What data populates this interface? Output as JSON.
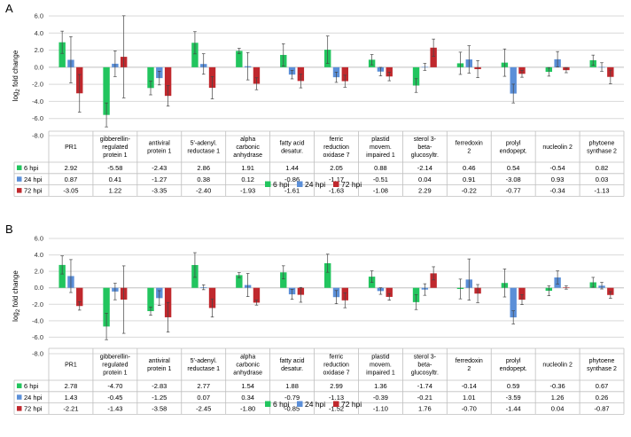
{
  "chart_data": [
    {
      "type": "bar",
      "panel_label": "A",
      "ylabel": "log",
      "ylabel_sub": "2",
      "ylabel_rest": " fold change",
      "ylim": [
        -8.0,
        6.0
      ],
      "yticks": [
        "6.0",
        "4.0",
        "2.0",
        "0.0",
        "-2.0",
        "-4.0",
        "-6.0",
        "-8.0"
      ],
      "categories": [
        [
          "PR1"
        ],
        [
          "gibberellin-",
          "regulated",
          "protein 1"
        ],
        [
          "antiviral",
          "protein 1"
        ],
        [
          "5'-adenyl.",
          "reductase 1"
        ],
        [
          "alpha",
          "carbonic",
          "anhydrase"
        ],
        [
          "fatty acid",
          "desatur."
        ],
        [
          "ferric",
          "reduction",
          "oxidase 7"
        ],
        [
          "plastid",
          "movem.",
          "impaired 1"
        ],
        [
          "sterol 3-",
          "beta-",
          "glucosyltr."
        ],
        [
          "ferredoxin",
          "2"
        ],
        [
          "prolyl",
          "endopept."
        ],
        [
          "nucleolin 2"
        ],
        [
          "phytoene",
          "synthase 2"
        ]
      ],
      "series": [
        {
          "name": "6 hpi",
          "color": "#22c55e",
          "values": [
            "2.92",
            "-5.58",
            "-2.43",
            "2.86",
            "1.91",
            "1.44",
            "2.05",
            "0.88",
            "-2.14",
            "0.46",
            "0.54",
            "-0.54",
            "0.82"
          ],
          "errors": [
            1.3,
            1.4,
            0.8,
            1.3,
            0.3,
            1.3,
            1.6,
            0.6,
            0.8,
            1.3,
            1.6,
            0.5,
            0.6
          ]
        },
        {
          "name": "24 hpi",
          "color": "#5b8fd8",
          "values": [
            "0.87",
            "0.41",
            "-1.27",
            "0.38",
            "0.12",
            "-0.86",
            "-1.17",
            "-0.51",
            "0.04",
            "0.91",
            "-3.08",
            "0.93",
            "0.03"
          ],
          "errors": [
            2.7,
            1.5,
            0.8,
            1.2,
            1.6,
            0.5,
            0.6,
            0.5,
            0.4,
            1.6,
            1.1,
            0.9,
            0.5
          ]
        },
        {
          "name": "72 hpi",
          "color": "#c0282d",
          "values": [
            "-3.05",
            "1.22",
            "-3.35",
            "-2.40",
            "-1.93",
            "-1.61",
            "-1.63",
            "-1.08",
            "2.29",
            "-0.22",
            "-0.77",
            "-0.34",
            "-1.13"
          ],
          "errors": [
            2.2,
            4.8,
            1.2,
            1.3,
            0.7,
            0.8,
            0.7,
            0.5,
            1.0,
            1.0,
            0.4,
            0.3,
            0.8
          ]
        }
      ]
    },
    {
      "type": "bar",
      "panel_label": "B",
      "ylabel": "log",
      "ylabel_sub": "2",
      "ylabel_rest": " fold change",
      "ylim": [
        -8.0,
        6.0
      ],
      "yticks": [
        "6.0",
        "4.0",
        "2.0",
        "0.0",
        "-2.0",
        "-4.0",
        "-6.0",
        "-8.0"
      ],
      "categories": [
        [
          "PR1"
        ],
        [
          "gibberellin-",
          "regulated",
          "protein 1"
        ],
        [
          "antiviral",
          "protein 1"
        ],
        [
          "5'-adenyl.",
          "reductase 1"
        ],
        [
          "alpha",
          "carbonic",
          "anhydrase"
        ],
        [
          "fatty acid",
          "desatur."
        ],
        [
          "ferric",
          "reduction",
          "oxidase 7"
        ],
        [
          "plastid",
          "movem.",
          "impaired 1"
        ],
        [
          "sterol 3-",
          "beta-",
          "glucosyltr."
        ],
        [
          "ferredoxin",
          "2"
        ],
        [
          "prolyl",
          "endopept."
        ],
        [
          "nucleolin 2"
        ],
        [
          "phytoene",
          "synthase 2"
        ]
      ],
      "series": [
        {
          "name": "6 hpi",
          "color": "#22c55e",
          "values": [
            "2.78",
            "-4.70",
            "-2.83",
            "2.77",
            "1.54",
            "1.88",
            "2.99",
            "1.36",
            "-1.74",
            "-0.14",
            "0.59",
            "-0.36",
            "0.67"
          ],
          "errors": [
            1.1,
            1.6,
            0.5,
            1.5,
            0.3,
            0.8,
            1.1,
            0.7,
            0.9,
            1.2,
            1.7,
            0.6,
            0.6
          ]
        },
        {
          "name": "24 hpi",
          "color": "#5b8fd8",
          "values": [
            "1.43",
            "-0.45",
            "-1.25",
            "0.07",
            "0.34",
            "-0.79",
            "-1.13",
            "-0.39",
            "-0.21",
            "1.01",
            "-3.59",
            "1.26",
            "0.26"
          ],
          "errors": [
            2.0,
            1.0,
            0.9,
            0.3,
            1.4,
            0.6,
            0.8,
            0.4,
            0.7,
            2.5,
            0.8,
            0.8,
            0.4
          ]
        },
        {
          "name": "72 hpi",
          "color": "#c0282d",
          "values": [
            "-2.21",
            "-1.43",
            "-3.58",
            "-2.45",
            "-1.80",
            "-0.85",
            "-1.52",
            "-1.10",
            "1.76",
            "-0.70",
            "-1.44",
            "0.04",
            "-0.87"
          ],
          "errors": [
            0.5,
            4.1,
            1.8,
            1.1,
            0.3,
            0.9,
            0.9,
            0.4,
            0.8,
            1.1,
            0.6,
            0.2,
            0.4
          ]
        }
      ]
    }
  ]
}
